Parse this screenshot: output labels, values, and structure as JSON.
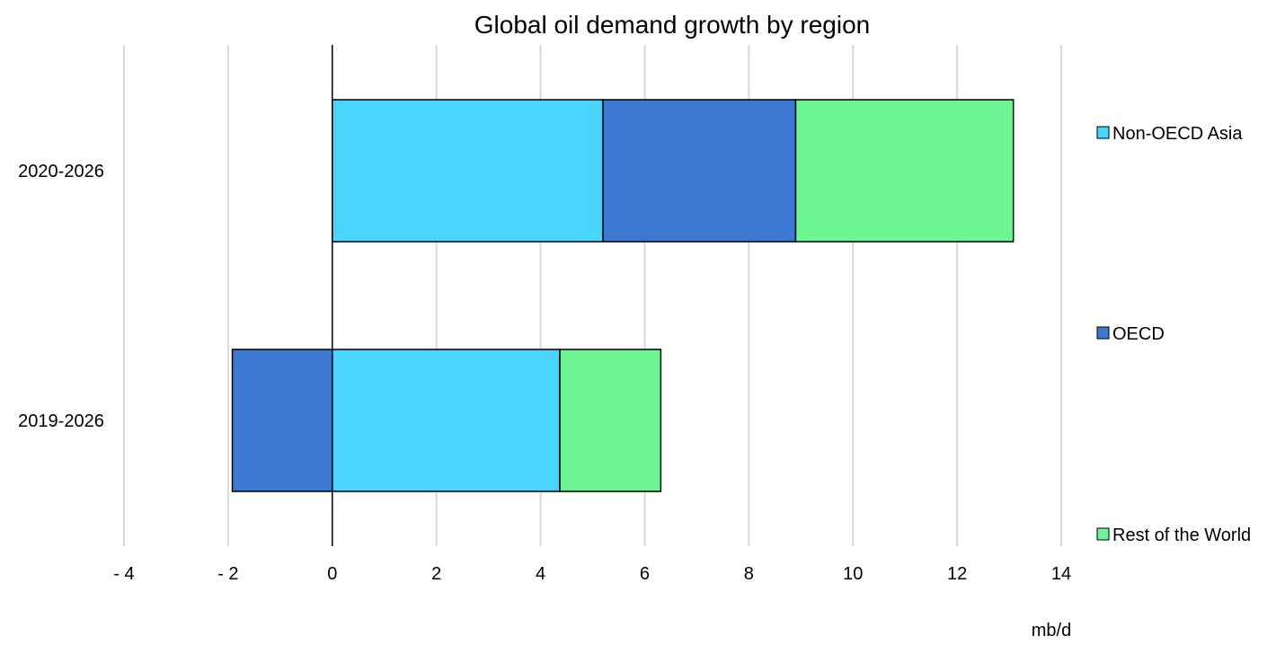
{
  "chart_data": {
    "type": "bar",
    "orientation": "horizontal",
    "stacked": true,
    "title": "Global oil demand growth by region",
    "xlabel": "mb/d",
    "ylabel": "",
    "xlim": [
      -4,
      14
    ],
    "x_ticks": [
      -4,
      -2,
      0,
      2,
      4,
      6,
      8,
      10,
      12,
      14
    ],
    "x_tick_labels": [
      "- 4",
      "- 2",
      "0",
      "2",
      "4",
      "6",
      "8",
      "10",
      "12",
      "14"
    ],
    "grid": "vertical",
    "legend_position": "right",
    "categories": [
      "2020-2026",
      "2019-2026"
    ],
    "series": [
      {
        "name": "Non-OECD Asia",
        "color": "#48d4fc",
        "values": [
          5.2,
          4.37
        ]
      },
      {
        "name": "OECD",
        "color": "#3c78d2",
        "values": [
          3.7,
          -1.92
        ]
      },
      {
        "name": "Rest of the World",
        "color": "#6cf592",
        "values": [
          4.18,
          1.94
        ]
      }
    ]
  }
}
